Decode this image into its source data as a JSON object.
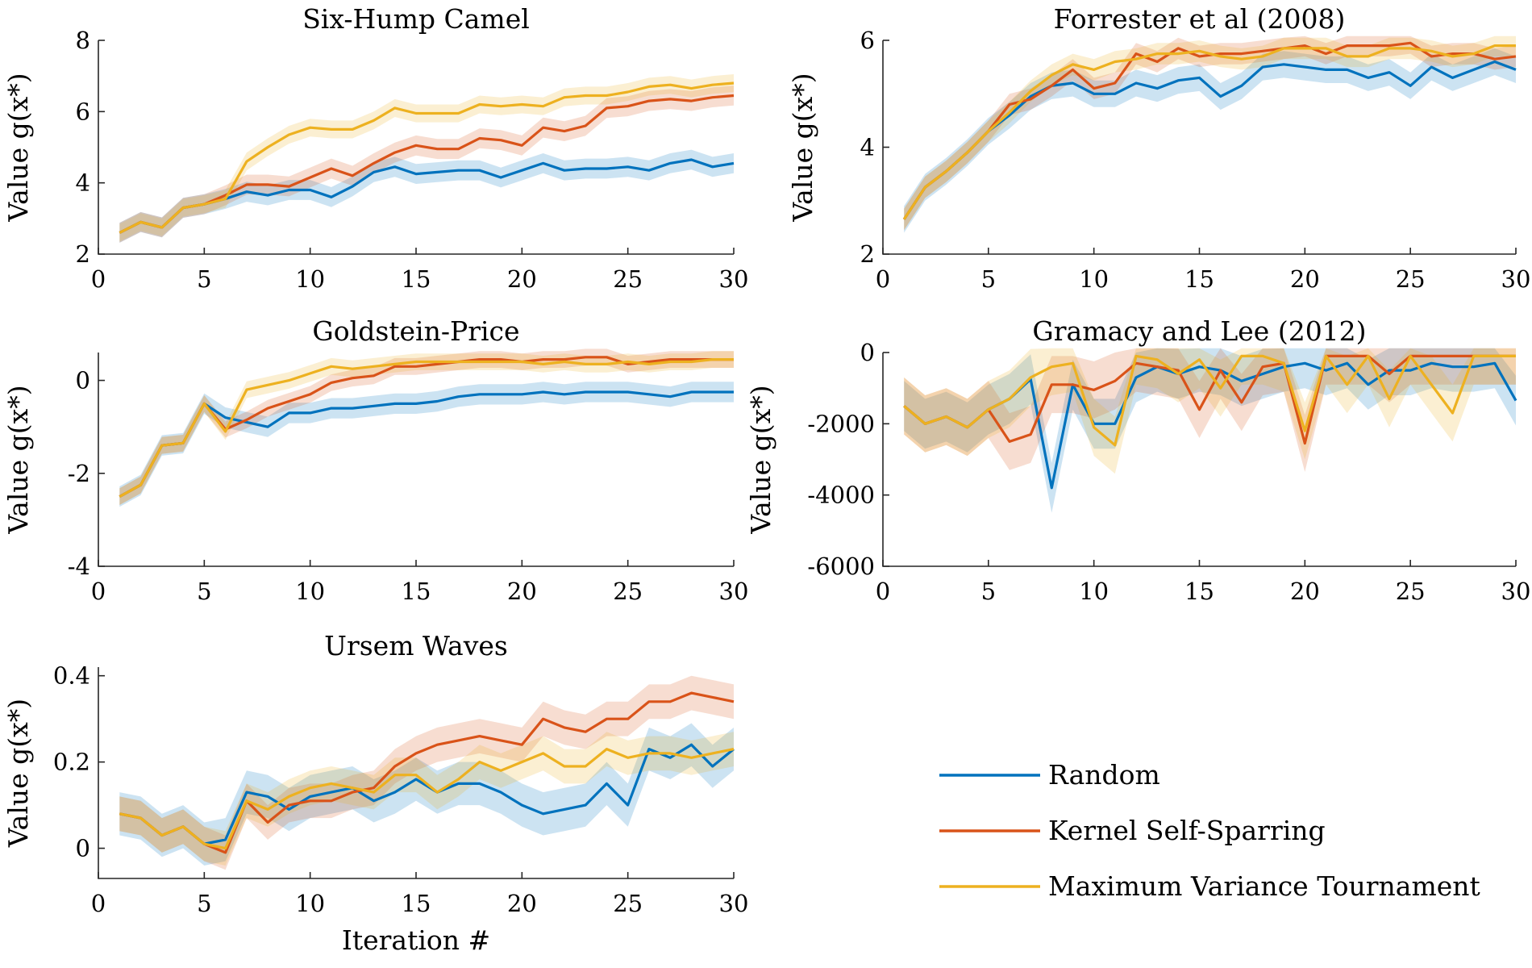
{
  "colors": {
    "random": "#0072BD",
    "kernel": "#D95319",
    "mvt": "#EDB120"
  },
  "legend": [
    {
      "label": "Random",
      "color": "#0072BD"
    },
    {
      "label": "Kernel Self-Sparring",
      "color": "#D95319"
    },
    {
      "label": "Maximum Variance Tournament",
      "color": "#EDB120"
    }
  ],
  "chart_data": [
    {
      "type": "line",
      "title": "Six-Hump Camel",
      "ylabel": "Value g(x*)",
      "xlabel": "",
      "xlim": [
        0,
        30
      ],
      "ylim": [
        2,
        8
      ],
      "xticks": [
        "0",
        "5",
        "10",
        "15",
        "20",
        "25",
        "30"
      ],
      "yticks": [
        "2",
        "4",
        "6",
        "8"
      ],
      "x_start": 1,
      "series": [
        {
          "name": "Random",
          "values": [
            2.6,
            2.9,
            2.75,
            3.3,
            3.4,
            3.55,
            3.75,
            3.65,
            3.8,
            3.8,
            3.6,
            3.9,
            4.3,
            4.45,
            4.25,
            4.3,
            4.35,
            4.35,
            4.15,
            4.35,
            4.55,
            4.35,
            4.4,
            4.4,
            4.45,
            4.35,
            4.55,
            4.65,
            4.45,
            4.55
          ],
          "band": 0.28
        },
        {
          "name": "Kernel Self-Sparring",
          "values": [
            2.6,
            2.9,
            2.75,
            3.3,
            3.4,
            3.65,
            3.95,
            3.95,
            3.9,
            4.15,
            4.4,
            4.2,
            4.55,
            4.85,
            5.05,
            4.95,
            4.95,
            5.25,
            5.2,
            5.05,
            5.55,
            5.45,
            5.6,
            6.1,
            6.15,
            6.3,
            6.35,
            6.3,
            6.4,
            6.45
          ],
          "band": 0.28
        },
        {
          "name": "Maximum Variance Tournament",
          "values": [
            2.6,
            2.9,
            2.75,
            3.3,
            3.4,
            3.55,
            4.6,
            5.0,
            5.35,
            5.55,
            5.5,
            5.5,
            5.75,
            6.1,
            5.95,
            5.95,
            5.95,
            6.2,
            6.15,
            6.2,
            6.15,
            6.4,
            6.45,
            6.45,
            6.55,
            6.7,
            6.75,
            6.65,
            6.75,
            6.8
          ],
          "band": 0.25
        }
      ]
    },
    {
      "type": "line",
      "title": "Forrester et al (2008)",
      "ylabel": "Value g(x*)",
      "xlabel": "",
      "xlim": [
        0,
        30
      ],
      "ylim": [
        2,
        6
      ],
      "xticks": [
        "0",
        "5",
        "10",
        "15",
        "20",
        "25",
        "30"
      ],
      "yticks": [
        "2",
        "4",
        "6"
      ],
      "x_start": 1,
      "series": [
        {
          "name": "Random",
          "values": [
            2.65,
            3.25,
            3.55,
            3.9,
            4.3,
            4.6,
            4.95,
            5.15,
            5.2,
            5.0,
            5.0,
            5.2,
            5.1,
            5.25,
            5.3,
            4.95,
            5.15,
            5.5,
            5.55,
            5.5,
            5.45,
            5.45,
            5.3,
            5.4,
            5.15,
            5.5,
            5.3,
            5.45,
            5.6,
            5.45
          ],
          "band": 0.25
        },
        {
          "name": "Kernel Self-Sparring",
          "values": [
            2.65,
            3.25,
            3.55,
            3.9,
            4.3,
            4.8,
            4.9,
            5.15,
            5.45,
            5.1,
            5.2,
            5.75,
            5.6,
            5.85,
            5.7,
            5.75,
            5.75,
            5.8,
            5.85,
            5.9,
            5.75,
            5.9,
            5.9,
            5.9,
            5.95,
            5.7,
            5.75,
            5.75,
            5.65,
            5.7
          ],
          "band": 0.2
        },
        {
          "name": "Maximum Variance Tournament",
          "values": [
            2.65,
            3.25,
            3.55,
            3.9,
            4.3,
            4.65,
            5.05,
            5.35,
            5.55,
            5.45,
            5.6,
            5.65,
            5.75,
            5.75,
            5.8,
            5.7,
            5.65,
            5.7,
            5.85,
            5.85,
            5.85,
            5.7,
            5.7,
            5.85,
            5.85,
            5.8,
            5.7,
            5.75,
            5.9,
            5.9
          ],
          "band": 0.2
        }
      ]
    },
    {
      "type": "line",
      "title": "Goldstein-Price",
      "ylabel": "Value g(x*)",
      "xlabel": "",
      "xlim": [
        0,
        30
      ],
      "ylim": [
        -4,
        0.6
      ],
      "xticks": [
        "0",
        "5",
        "10",
        "15",
        "20",
        "25",
        "30"
      ],
      "yticks": [
        "-4",
        "-2",
        "0"
      ],
      "x_start": 1,
      "series": [
        {
          "name": "Random",
          "values": [
            -2.5,
            -2.25,
            -1.4,
            -1.35,
            -0.5,
            -0.8,
            -0.9,
            -1.0,
            -0.7,
            -0.7,
            -0.6,
            -0.6,
            -0.55,
            -0.5,
            -0.5,
            -0.45,
            -0.35,
            -0.3,
            -0.3,
            -0.3,
            -0.25,
            -0.3,
            -0.25,
            -0.25,
            -0.25,
            -0.3,
            -0.35,
            -0.25,
            -0.25,
            -0.25
          ],
          "band": 0.22
        },
        {
          "name": "Kernel Self-Sparring",
          "values": [
            -2.5,
            -2.25,
            -1.4,
            -1.35,
            -0.5,
            -1.05,
            -0.85,
            -0.6,
            -0.45,
            -0.3,
            -0.05,
            0.05,
            0.1,
            0.3,
            0.3,
            0.35,
            0.4,
            0.45,
            0.45,
            0.4,
            0.45,
            0.45,
            0.5,
            0.5,
            0.35,
            0.4,
            0.45,
            0.45,
            0.45,
            0.45
          ],
          "band": 0.18
        },
        {
          "name": "Maximum Variance Tournament",
          "values": [
            -2.5,
            -2.25,
            -1.4,
            -1.35,
            -0.5,
            -1.1,
            -0.2,
            -0.1,
            0.0,
            0.15,
            0.3,
            0.25,
            0.3,
            0.35,
            0.4,
            0.4,
            0.4,
            0.4,
            0.4,
            0.4,
            0.35,
            0.4,
            0.35,
            0.35,
            0.4,
            0.35,
            0.4,
            0.4,
            0.45,
            0.45
          ],
          "band": 0.18
        }
      ]
    },
    {
      "type": "line",
      "title": "Gramacy and Lee (2012)",
      "ylabel": "Value g(x*)",
      "xlabel": "",
      "xlim": [
        0,
        30
      ],
      "ylim": [
        -6000,
        0
      ],
      "xticks": [
        "0",
        "5",
        "10",
        "15",
        "20",
        "25",
        "30"
      ],
      "yticks": [
        "-6000",
        "-4000",
        "-2000",
        "0"
      ],
      "x_start": 1,
      "series": [
        {
          "name": "Random",
          "values": [
            -1500,
            -2000,
            -1800,
            -2100,
            -1600,
            -1300,
            -750,
            -3800,
            -900,
            -2000,
            -2000,
            -700,
            -400,
            -600,
            -400,
            -500,
            -800,
            -600,
            -400,
            -300,
            -500,
            -300,
            -900,
            -500,
            -500,
            -300,
            -400,
            -400,
            -300,
            -1350
          ],
          "band": 700
        },
        {
          "name": "Kernel Self-Sparring",
          "values": [
            -1500,
            -2000,
            -1800,
            -2100,
            -1600,
            -2500,
            -2300,
            -900,
            -900,
            -1050,
            -800,
            -300,
            -400,
            -500,
            -1600,
            -500,
            -1400,
            -400,
            -300,
            -2550,
            -100,
            -100,
            -100,
            -600,
            -100,
            -100,
            -100,
            -100,
            -100,
            -100
          ],
          "band": 800
        },
        {
          "name": "Maximum Variance Tournament",
          "values": [
            -1500,
            -2000,
            -1800,
            -2100,
            -1600,
            -1300,
            -700,
            -400,
            -300,
            -2100,
            -2600,
            -100,
            -200,
            -600,
            -200,
            -1000,
            -100,
            -100,
            -300,
            -2200,
            -100,
            -900,
            -100,
            -1300,
            -100,
            -900,
            -1700,
            -100,
            -100,
            -100
          ],
          "band": 800
        }
      ]
    },
    {
      "type": "line",
      "title": "Ursem Waves",
      "ylabel": "Value g(x*)",
      "xlabel": "Iteration #",
      "xlim": [
        0,
        30
      ],
      "ylim": [
        -0.07,
        0.42
      ],
      "xticks": [
        "0",
        "5",
        "10",
        "15",
        "20",
        "25",
        "30"
      ],
      "yticks": [
        "0",
        "0.2",
        "0.4"
      ],
      "x_start": 1,
      "series": [
        {
          "name": "Random",
          "values": [
            0.08,
            0.07,
            0.03,
            0.05,
            0.01,
            0.02,
            0.13,
            0.12,
            0.09,
            0.12,
            0.13,
            0.14,
            0.11,
            0.13,
            0.16,
            0.13,
            0.15,
            0.15,
            0.13,
            0.1,
            0.08,
            0.09,
            0.1,
            0.15,
            0.1,
            0.23,
            0.21,
            0.24,
            0.19,
            0.23
          ],
          "band": 0.05
        },
        {
          "name": "Kernel Self-Sparring",
          "values": [
            0.08,
            0.07,
            0.03,
            0.05,
            0.01,
            -0.01,
            0.11,
            0.06,
            0.1,
            0.11,
            0.11,
            0.13,
            0.14,
            0.19,
            0.22,
            0.24,
            0.25,
            0.26,
            0.25,
            0.24,
            0.3,
            0.28,
            0.27,
            0.3,
            0.3,
            0.34,
            0.34,
            0.36,
            0.35,
            0.34
          ],
          "band": 0.04
        },
        {
          "name": "Maximum Variance Tournament",
          "values": [
            0.08,
            0.07,
            0.03,
            0.05,
            0.01,
            0.0,
            0.11,
            0.09,
            0.12,
            0.14,
            0.15,
            0.14,
            0.13,
            0.17,
            0.17,
            0.13,
            0.16,
            0.2,
            0.18,
            0.2,
            0.22,
            0.19,
            0.19,
            0.23,
            0.21,
            0.22,
            0.22,
            0.21,
            0.22,
            0.23
          ],
          "band": 0.04
        }
      ]
    }
  ]
}
